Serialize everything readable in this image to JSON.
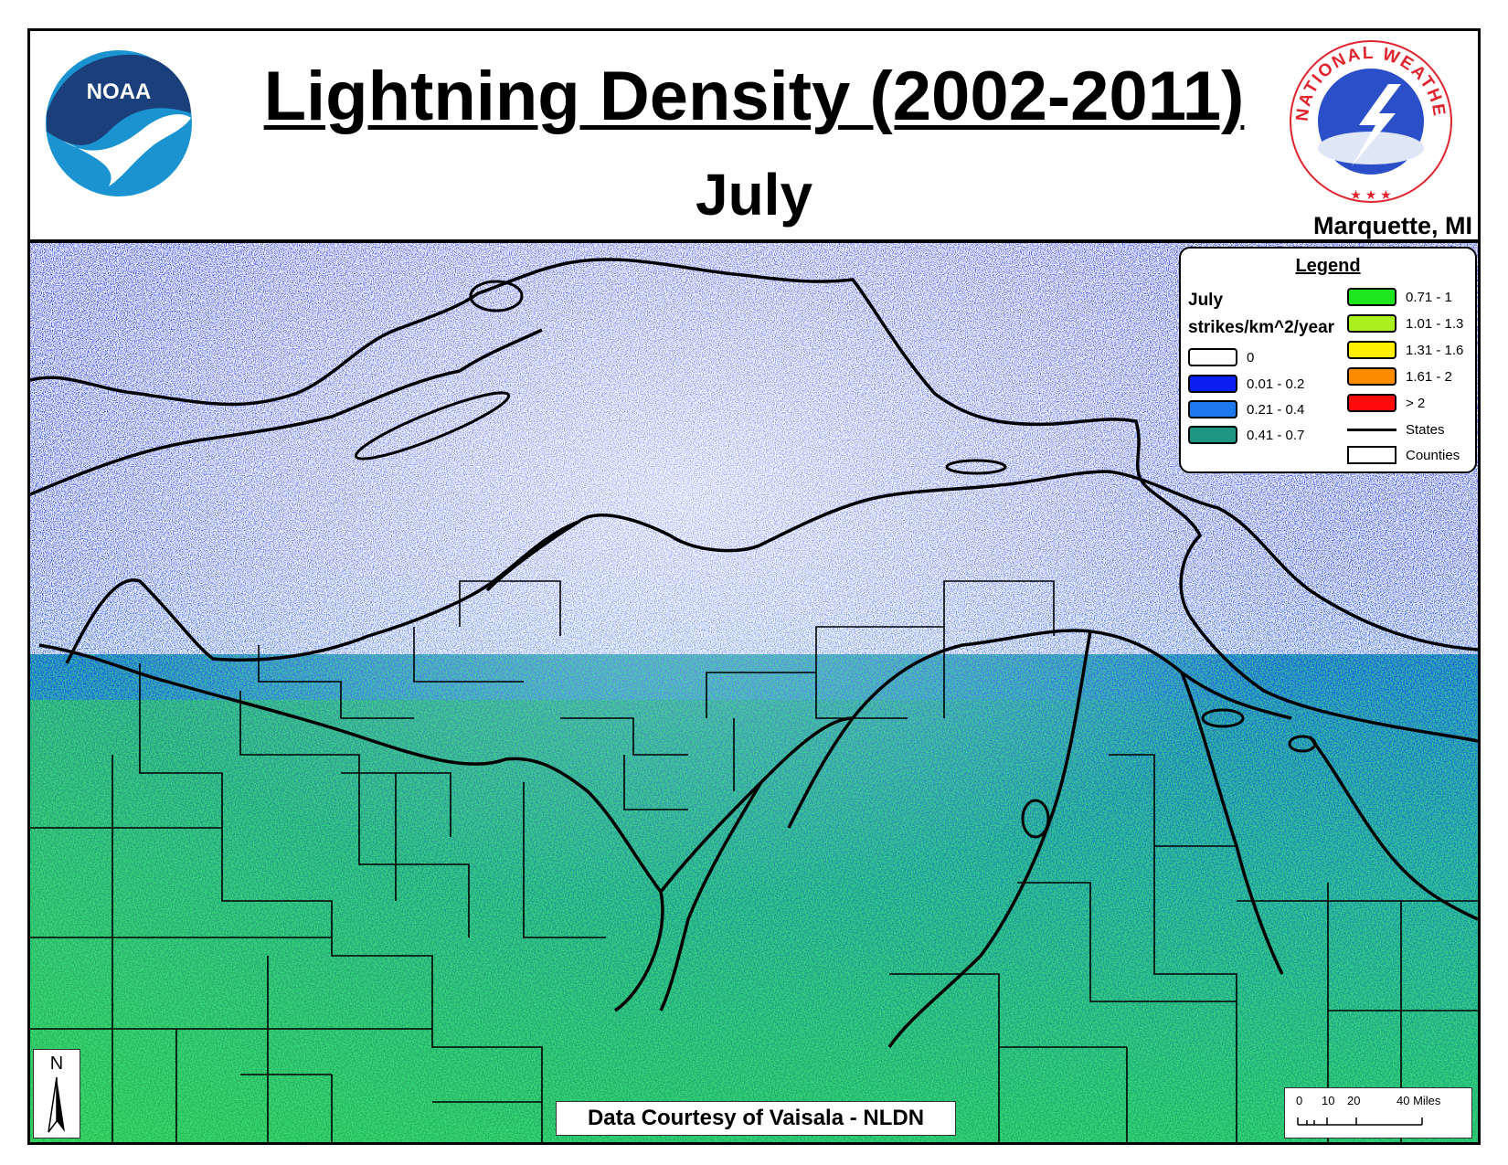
{
  "header": {
    "title": "Lightning Density (2002-2011)",
    "subtitle": "July",
    "office": "Marquette, MI"
  },
  "logos": {
    "noaa": {
      "text": "NOAA",
      "icon": "noaa-logo"
    },
    "nws": {
      "text": "NATIONAL WEATHER SERVICE",
      "icon": "nws-logo"
    }
  },
  "legend": {
    "title": "Legend",
    "period": "July",
    "unit": "strikes/km^2/year",
    "classes": [
      {
        "label": "0",
        "color": "#ffffff"
      },
      {
        "label": "0.01 - 0.2",
        "color": "#0a1ef0"
      },
      {
        "label": "0.21 - 0.4",
        "color": "#1e78f0"
      },
      {
        "label": "0.41 - 0.7",
        "color": "#1e9682"
      },
      {
        "label": "0.71 - 1",
        "color": "#1ee61e"
      },
      {
        "label": "1.01 - 1.3",
        "color": "#aaf01e"
      },
      {
        "label": "1.31 - 1.6",
        "color": "#fff000"
      },
      {
        "label": "1.61 - 2",
        "color": "#ff8c00"
      },
      {
        "label": "> 2",
        "color": "#ff0a0a"
      }
    ],
    "lines": [
      {
        "label": "States",
        "type": "line"
      },
      {
        "label": "Counties",
        "type": "box"
      }
    ]
  },
  "courtesy": "Data Courtesy of Vaisala - NLDN",
  "north_arrow": {
    "label": "N"
  },
  "scale": {
    "ticks": [
      "0",
      "10",
      "20",
      "40 Miles"
    ]
  }
}
